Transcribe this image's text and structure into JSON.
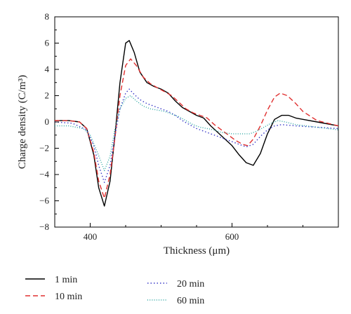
{
  "chart_data": {
    "type": "line",
    "title": "",
    "xlabel": "Thickness (μm)",
    "ylabel": "Charge density (C/m³)",
    "xlim": [
      350,
      750
    ],
    "ylim": [
      -8,
      8
    ],
    "xticks": [
      400,
      600
    ],
    "yticks": [
      -8,
      -6,
      -4,
      -2,
      0,
      2,
      4,
      6,
      8
    ],
    "xtick_labels": [
      "400",
      "600"
    ],
    "ytick_labels": [
      "−8",
      "−6",
      "−4",
      "−2",
      "0",
      "2",
      "4",
      "6",
      "8"
    ],
    "grid": false,
    "legend_position": "bottom",
    "series": [
      {
        "name": "1 min",
        "color": "#000000",
        "dash": "solid",
        "points": [
          [
            350,
            0.1
          ],
          [
            370,
            0.1
          ],
          [
            385,
            0
          ],
          [
            395,
            -0.5
          ],
          [
            405,
            -2.5
          ],
          [
            412,
            -5
          ],
          [
            420,
            -6.4
          ],
          [
            428,
            -4.5
          ],
          [
            435,
            -1
          ],
          [
            442,
            3
          ],
          [
            450,
            6
          ],
          [
            455,
            6.2
          ],
          [
            462,
            5.3
          ],
          [
            470,
            3.8
          ],
          [
            480,
            3
          ],
          [
            490,
            2.7
          ],
          [
            500,
            2.5
          ],
          [
            510,
            2.2
          ],
          [
            520,
            1.6
          ],
          [
            530,
            1.1
          ],
          [
            540,
            0.8
          ],
          [
            550,
            0.5
          ],
          [
            560,
            0.3
          ],
          [
            570,
            -0.3
          ],
          [
            580,
            -0.8
          ],
          [
            590,
            -1.3
          ],
          [
            600,
            -1.8
          ],
          [
            610,
            -2.5
          ],
          [
            620,
            -3.1
          ],
          [
            630,
            -3.3
          ],
          [
            640,
            -2.4
          ],
          [
            650,
            -0.9
          ],
          [
            660,
            0.2
          ],
          [
            670,
            0.5
          ],
          [
            680,
            0.5
          ],
          [
            690,
            0.3
          ],
          [
            700,
            0.2
          ],
          [
            720,
            0
          ],
          [
            750,
            -0.3
          ]
        ]
      },
      {
        "name": "10 min",
        "color": "#e03030",
        "dash": "dashed",
        "points": [
          [
            350,
            0.1
          ],
          [
            370,
            0.1
          ],
          [
            385,
            0
          ],
          [
            395,
            -0.5
          ],
          [
            405,
            -2.3
          ],
          [
            412,
            -4.5
          ],
          [
            420,
            -5.8
          ],
          [
            428,
            -4
          ],
          [
            435,
            -1.2
          ],
          [
            442,
            2
          ],
          [
            450,
            4.3
          ],
          [
            457,
            4.8
          ],
          [
            465,
            4.3
          ],
          [
            475,
            3.4
          ],
          [
            485,
            2.9
          ],
          [
            495,
            2.6
          ],
          [
            505,
            2.3
          ],
          [
            515,
            2
          ],
          [
            525,
            1.5
          ],
          [
            535,
            1
          ],
          [
            545,
            0.7
          ],
          [
            555,
            0.5
          ],
          [
            565,
            0.3
          ],
          [
            575,
            -0.2
          ],
          [
            585,
            -0.6
          ],
          [
            595,
            -1
          ],
          [
            605,
            -1.4
          ],
          [
            615,
            -1.7
          ],
          [
            622,
            -1.8
          ],
          [
            630,
            -1.3
          ],
          [
            640,
            -0.3
          ],
          [
            650,
            0.9
          ],
          [
            660,
            1.9
          ],
          [
            668,
            2.2
          ],
          [
            678,
            2
          ],
          [
            690,
            1.4
          ],
          [
            700,
            0.8
          ],
          [
            720,
            0.1
          ],
          [
            750,
            -0.3
          ]
        ]
      },
      {
        "name": "20 min",
        "color": "#3a3ac8",
        "dash": "dotted",
        "points": [
          [
            350,
            0
          ],
          [
            375,
            -0.1
          ],
          [
            395,
            -0.6
          ],
          [
            405,
            -1.8
          ],
          [
            412,
            -3.3
          ],
          [
            420,
            -4.6
          ],
          [
            428,
            -3.3
          ],
          [
            435,
            -1
          ],
          [
            442,
            1
          ],
          [
            450,
            2.2
          ],
          [
            455,
            2.5
          ],
          [
            462,
            2.1
          ],
          [
            470,
            1.7
          ],
          [
            480,
            1.4
          ],
          [
            490,
            1.2
          ],
          [
            500,
            1
          ],
          [
            510,
            0.8
          ],
          [
            520,
            0.5
          ],
          [
            530,
            0.1
          ],
          [
            540,
            -0.2
          ],
          [
            550,
            -0.5
          ],
          [
            560,
            -0.7
          ],
          [
            570,
            -0.9
          ],
          [
            580,
            -1.1
          ],
          [
            590,
            -1.3
          ],
          [
            600,
            -1.5
          ],
          [
            610,
            -1.7
          ],
          [
            620,
            -1.9
          ],
          [
            630,
            -1.7
          ],
          [
            640,
            -1.1
          ],
          [
            650,
            -0.6
          ],
          [
            660,
            -0.3
          ],
          [
            670,
            -0.2
          ],
          [
            690,
            -0.3
          ],
          [
            720,
            -0.4
          ],
          [
            750,
            -0.5
          ]
        ]
      },
      {
        "name": "60 min",
        "color": "#2aa5a0",
        "dash": "dotted-fine",
        "points": [
          [
            350,
            -0.3
          ],
          [
            370,
            -0.3
          ],
          [
            390,
            -0.5
          ],
          [
            400,
            -1
          ],
          [
            410,
            -2.3
          ],
          [
            420,
            -3.7
          ],
          [
            428,
            -2.6
          ],
          [
            435,
            -0.5
          ],
          [
            442,
            1
          ],
          [
            450,
            1.8
          ],
          [
            457,
            2
          ],
          [
            465,
            1.6
          ],
          [
            475,
            1.2
          ],
          [
            485,
            1
          ],
          [
            495,
            0.9
          ],
          [
            505,
            0.8
          ],
          [
            515,
            0.6
          ],
          [
            525,
            0.4
          ],
          [
            535,
            0.1
          ],
          [
            545,
            -0.2
          ],
          [
            555,
            -0.4
          ],
          [
            565,
            -0.5
          ],
          [
            575,
            -0.6
          ],
          [
            585,
            -0.8
          ],
          [
            600,
            -0.9
          ],
          [
            615,
            -0.9
          ],
          [
            625,
            -0.9
          ],
          [
            635,
            -0.7
          ],
          [
            645,
            -0.4
          ],
          [
            655,
            -0.1
          ],
          [
            665,
            0.1
          ],
          [
            675,
            0
          ],
          [
            690,
            -0.2
          ],
          [
            720,
            -0.4
          ],
          [
            750,
            -0.6
          ]
        ]
      }
    ]
  }
}
